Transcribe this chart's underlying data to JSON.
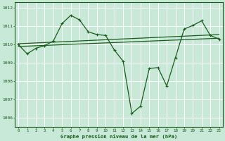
{
  "x": [
    0,
    1,
    2,
    3,
    4,
    5,
    6,
    7,
    8,
    9,
    10,
    11,
    12,
    13,
    14,
    15,
    16,
    17,
    18,
    19,
    20,
    21,
    22,
    23
  ],
  "series1": [
    1010.0,
    1009.5,
    1009.8,
    1009.95,
    1010.2,
    1011.15,
    1011.6,
    1011.35,
    1010.7,
    1010.55,
    1010.5,
    1009.7,
    1009.1,
    1006.25,
    1006.65,
    1008.7,
    1008.75,
    1007.75,
    1009.3,
    1010.85,
    1011.05,
    1011.3,
    1010.5,
    1010.3
  ],
  "trend1_x": [
    0,
    23
  ],
  "trend1_y": [
    1009.9,
    1010.35
  ],
  "trend2_x": [
    0,
    23
  ],
  "trend2_y": [
    1010.05,
    1010.55
  ],
  "bg_color": "#c8e8d8",
  "line_color": "#1a5c1a",
  "grid_color": "#b0d4c0",
  "xlabel": "Graphe pression niveau de la mer (hPa)",
  "ylim": [
    1005.5,
    1012.3
  ],
  "xlim": [
    -0.4,
    23.4
  ],
  "yticks": [
    1006,
    1007,
    1008,
    1009,
    1010,
    1011,
    1012
  ],
  "xticks": [
    0,
    1,
    2,
    3,
    4,
    5,
    6,
    7,
    8,
    9,
    10,
    11,
    12,
    13,
    14,
    15,
    16,
    17,
    18,
    19,
    20,
    21,
    22,
    23
  ]
}
